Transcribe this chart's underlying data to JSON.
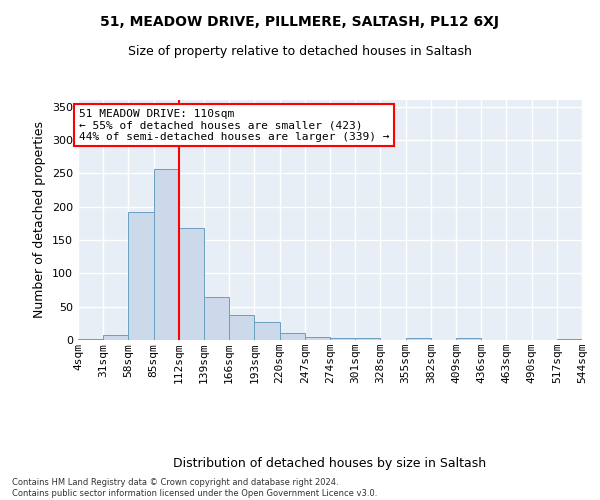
{
  "title": "51, MEADOW DRIVE, PILLMERE, SALTASH, PL12 6XJ",
  "subtitle": "Size of property relative to detached houses in Saltash",
  "xlabel": "Distribution of detached houses by size in Saltash",
  "ylabel": "Number of detached properties",
  "bar_color": "#ccd9ea",
  "bar_edge_color": "#6a9fc0",
  "background_color": "#e8eef5",
  "grid_color": "#ffffff",
  "vline_x": 112,
  "vline_color": "red",
  "annotation_line1": "51 MEADOW DRIVE: 110sqm",
  "annotation_line2": "← 55% of detached houses are smaller (423)",
  "annotation_line3": "44% of semi-detached houses are larger (339) →",
  "annotation_box_color": "white",
  "annotation_box_edge": "red",
  "footnote": "Contains HM Land Registry data © Crown copyright and database right 2024.\nContains public sector information licensed under the Open Government Licence v3.0.",
  "bin_edges": [
    4,
    31,
    58,
    85,
    112,
    139,
    166,
    193,
    220,
    247,
    274,
    301,
    328,
    355,
    382,
    409,
    436,
    463,
    490,
    517,
    544
  ],
  "bar_heights": [
    2,
    8,
    192,
    256,
    168,
    65,
    37,
    27,
    11,
    5,
    3,
    3,
    0,
    3,
    0,
    3,
    0,
    0,
    0,
    2
  ],
  "ylim": [
    0,
    360
  ],
  "yticks": [
    0,
    50,
    100,
    150,
    200,
    250,
    300,
    350
  ],
  "title_fontsize": 10,
  "subtitle_fontsize": 9,
  "ylabel_fontsize": 9,
  "xlabel_fontsize": 9,
  "tick_fontsize": 8,
  "annot_fontsize": 8
}
